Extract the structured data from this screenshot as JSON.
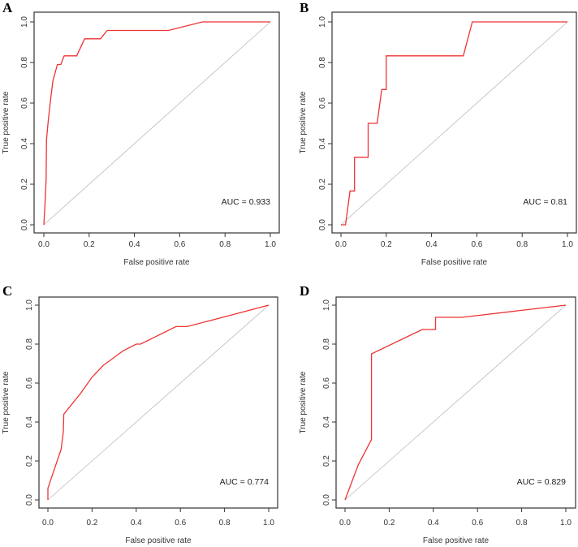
{
  "chart_data": [
    {
      "type": "line",
      "panel": "A",
      "xlabel": "False positive rate",
      "ylabel": "True positive rate",
      "xlim": [
        0,
        1
      ],
      "ylim": [
        0,
        1
      ],
      "xticks": [
        "0.0",
        "0.2",
        "0.4",
        "0.6",
        "0.8",
        "1.0"
      ],
      "yticks": [
        "0.0",
        "0.2",
        "0.4",
        "0.6",
        "0.8",
        "1.0"
      ],
      "annotation": "AUC =  0.933",
      "series": [
        {
          "name": "ROC",
          "color": "#ee3333",
          "x": [
            0,
            0.005,
            0.01,
            0.012,
            0.02,
            0.03,
            0.04,
            0.06,
            0.075,
            0.09,
            0.145,
            0.18,
            0.25,
            0.28,
            0.55,
            0.7,
            1
          ],
          "y": [
            0,
            0.1,
            0.22,
            0.42,
            0.52,
            0.62,
            0.71,
            0.79,
            0.79,
            0.833,
            0.833,
            0.917,
            0.917,
            0.958,
            0.958,
            1,
            1
          ]
        },
        {
          "name": "reference",
          "color": "#bbbbbb",
          "x": [
            0,
            1
          ],
          "y": [
            0,
            1
          ]
        }
      ]
    },
    {
      "type": "line",
      "panel": "B",
      "xlabel": "False positive rate",
      "ylabel": "True positive rate",
      "xlim": [
        0,
        1
      ],
      "ylim": [
        0,
        1
      ],
      "xticks": [
        "0.0",
        "0.2",
        "0.4",
        "0.6",
        "0.8",
        "1.0"
      ],
      "yticks": [
        "0.0",
        "0.2",
        "0.4",
        "0.6",
        "0.8",
        "1.0"
      ],
      "annotation": "AUC =  0.81",
      "series": [
        {
          "name": "ROC",
          "color": "#ee3333",
          "x": [
            0,
            0.02,
            0.04,
            0.06,
            0.06,
            0.12,
            0.12,
            0.16,
            0.18,
            0.2,
            0.2,
            0.54,
            0.58,
            1
          ],
          "y": [
            0,
            0,
            0.167,
            0.167,
            0.333,
            0.333,
            0.5,
            0.5,
            0.667,
            0.667,
            0.833,
            0.833,
            1,
            1
          ]
        },
        {
          "name": "reference",
          "color": "#bbbbbb",
          "x": [
            0,
            1
          ],
          "y": [
            0,
            1
          ]
        }
      ]
    },
    {
      "type": "line",
      "panel": "C",
      "xlabel": "False positive rate",
      "ylabel": "True positive rate",
      "xlim": [
        0,
        1
      ],
      "ylim": [
        0,
        1
      ],
      "xticks": [
        "0.0",
        "0.2",
        "0.4",
        "0.6",
        "0.8",
        "1.0"
      ],
      "yticks": [
        "0.0",
        "0.2",
        "0.4",
        "0.6",
        "0.8",
        "1.0"
      ],
      "annotation": "AUC =  0.774",
      "series": [
        {
          "name": "ROC",
          "color": "#ee3333",
          "x": [
            0,
            0,
            0.06,
            0.07,
            0.072,
            0.15,
            0.2,
            0.25,
            0.34,
            0.4,
            0.42,
            0.58,
            0.63,
            0.8,
            1
          ],
          "y": [
            0,
            0.06,
            0.26,
            0.35,
            0.44,
            0.55,
            0.63,
            0.69,
            0.765,
            0.8,
            0.8,
            0.89,
            0.89,
            0.94,
            1
          ]
        },
        {
          "name": "reference",
          "color": "#bbbbbb",
          "x": [
            0,
            1
          ],
          "y": [
            0,
            1
          ]
        }
      ]
    },
    {
      "type": "line",
      "panel": "D",
      "xlabel": "False positive rate",
      "ylabel": "True positive rate",
      "xlim": [
        0,
        1
      ],
      "ylim": [
        0,
        1
      ],
      "xticks": [
        "0.0",
        "0.2",
        "0.4",
        "0.6",
        "0.8",
        "1.0"
      ],
      "yticks": [
        "0.0",
        "0.2",
        "0.4",
        "0.6",
        "0.8",
        "1.0"
      ],
      "annotation": "AUC =  0.829",
      "series": [
        {
          "name": "ROC",
          "color": "#ee3333",
          "x": [
            0,
            0.06,
            0.12,
            0.12,
            0.35,
            0.41,
            0.41,
            0.53,
            1
          ],
          "y": [
            0,
            0.18,
            0.31,
            0.75,
            0.875,
            0.875,
            0.9375,
            0.9375,
            1
          ]
        },
        {
          "name": "reference",
          "color": "#bbbbbb",
          "x": [
            0,
            1
          ],
          "y": [
            0,
            1
          ]
        }
      ]
    }
  ]
}
